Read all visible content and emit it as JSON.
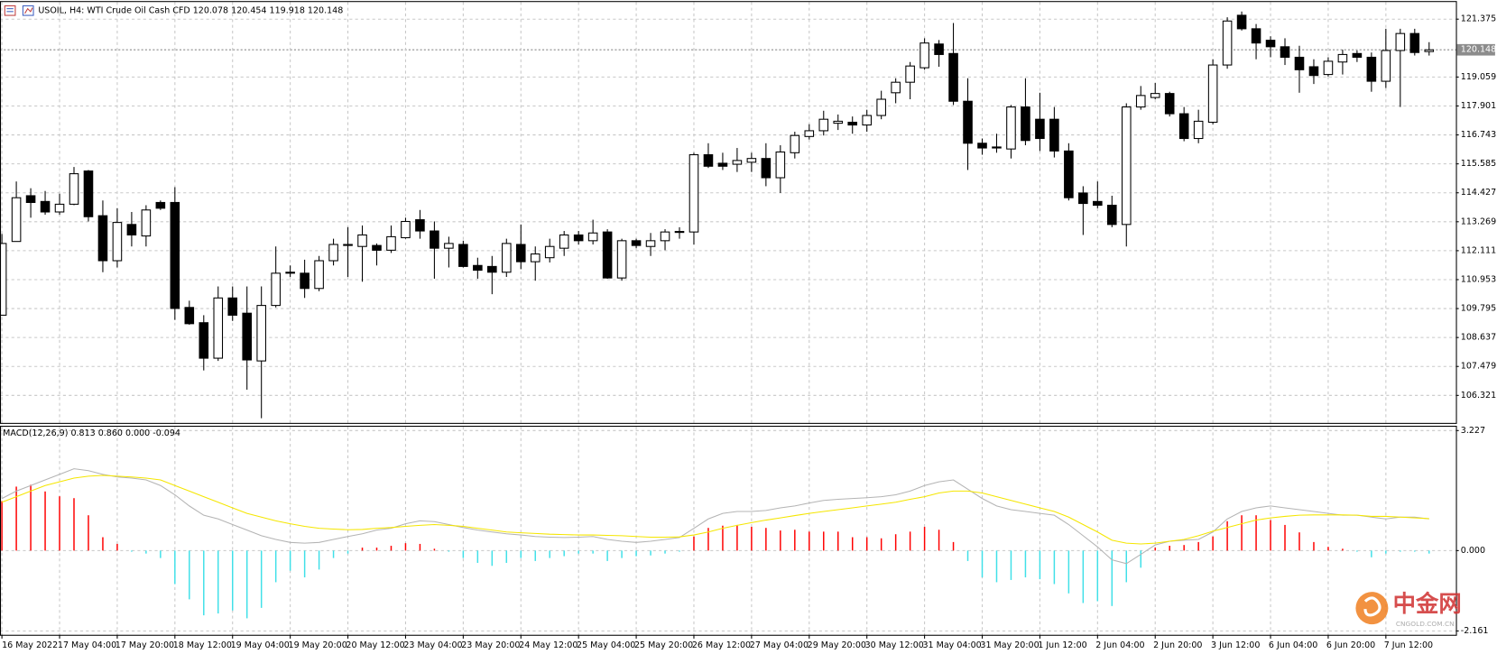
{
  "header": {
    "symbol": "USOIL, H4:",
    "description": "WTI Crude Oil Cash CFD"
  },
  "watermark": {
    "name": "中金网",
    "site": "CNGOLD.COM.CN"
  },
  "chart_data": [
    {
      "type": "candlestick",
      "categories": [
        "16 May 2022",
        null,
        null,
        null,
        "17 May 04:00",
        null,
        null,
        null,
        "17 May 20:00",
        null,
        null,
        null,
        "18 May 12:00",
        null,
        null,
        null,
        "19 May 04:00",
        null,
        null,
        null,
        "19 May 20:00",
        null,
        null,
        null,
        "20 May 12:00",
        null,
        null,
        null,
        "23 May 04:00",
        null,
        null,
        null,
        "23 May 20:00",
        null,
        null,
        null,
        "24 May 12:00",
        null,
        null,
        null,
        "25 May 04:00",
        null,
        null,
        null,
        "25 May 20:00",
        null,
        null,
        null,
        "26 May 12:00",
        null,
        null,
        null,
        "27 May 04:00",
        null,
        null,
        null,
        "29 May 20:00",
        null,
        null,
        null,
        "30 May 12:00",
        null,
        null,
        null,
        "31 May 04:00",
        null,
        null,
        null,
        "31 May 20:00",
        null,
        null,
        null,
        "1 Jun 12:00",
        null,
        null,
        null,
        "2 Jun 04:00",
        null,
        null,
        null,
        "2 Jun 20:00",
        null,
        null,
        null,
        "3 Jun 12:00",
        null,
        null,
        null,
        "6 Jun 04:00",
        null,
        null,
        null,
        "6 Jun 20:00",
        null,
        null,
        null,
        "7 Jun 12:00",
        null,
        null,
        null
      ],
      "open": [
        109.53,
        112.48,
        114.31,
        114.08,
        113.66,
        113.97,
        115.3,
        113.51,
        111.71,
        113.16,
        112.7,
        114.04,
        114.04,
        109.84,
        109.23,
        107.81,
        110.22,
        109.61,
        107.7,
        109.92,
        111.25,
        111.21,
        110.6,
        111.71,
        112.32,
        112.28,
        112.32,
        112.13,
        112.63,
        113.35,
        112.9,
        112.21,
        112.36,
        111.52,
        111.48,
        111.25,
        112.36,
        111.67,
        111.83,
        112.21,
        112.74,
        112.51,
        112.86,
        111.02,
        112.51,
        112.28,
        112.51,
        112.86,
        112.86,
        115.95,
        115.61,
        115.57,
        115.65,
        115.8,
        115.03,
        116.03,
        116.68,
        116.91,
        117.21,
        117.25,
        117.14,
        117.52,
        118.43,
        118.85,
        119.43,
        120.38,
        120.0,
        118.09,
        116.41,
        116.26,
        116.18,
        117.86,
        117.37,
        117.37,
        116.1,
        114.42,
        114.08,
        113.93,
        113.16,
        117.86,
        118.24,
        118.4,
        117.59,
        116.6,
        117.25,
        119.54,
        121.53,
        120.99,
        120.53,
        120.27,
        119.85,
        119.47,
        119.16,
        119.66,
        120.0,
        119.85,
        118.89,
        120.12,
        120.8,
        120.078
      ],
      "high": [
        112.78,
        114.88,
        114.61,
        114.5,
        114.39,
        115.46,
        115.34,
        114.12,
        113.81,
        113.66,
        113.93,
        114.12,
        114.65,
        110.11,
        109.53,
        110.68,
        110.68,
        110.68,
        110.68,
        112.28,
        111.52,
        111.75,
        111.9,
        112.59,
        113.05,
        113.12,
        112.4,
        113.12,
        113.43,
        113.74,
        113.28,
        112.67,
        112.51,
        111.83,
        111.9,
        112.59,
        113.16,
        112.28,
        112.59,
        112.9,
        112.9,
        113.35,
        112.97,
        112.59,
        112.59,
        112.82,
        112.97,
        113.05,
        116.03,
        116.41,
        116.03,
        116.22,
        116.03,
        116.41,
        116.33,
        116.87,
        117.17,
        117.71,
        117.56,
        117.48,
        117.75,
        118.51,
        119.01,
        119.66,
        120.61,
        120.54,
        121.22,
        119.01,
        116.6,
        116.79,
        117.94,
        119.01,
        118.43,
        117.86,
        116.41,
        114.69,
        114.88,
        114.31,
        118.01,
        118.7,
        118.82,
        118.47,
        117.86,
        117.75,
        119.77,
        121.45,
        121.68,
        121.18,
        120.69,
        120.61,
        120.31,
        119.77,
        119.85,
        120.15,
        120.12,
        120.04,
        120.99,
        120.99,
        120.99,
        120.454
      ],
      "low": [
        109.53,
        112.48,
        113.43,
        113.55,
        113.55,
        113.93,
        113.28,
        111.25,
        111.44,
        112.28,
        112.28,
        113.74,
        109.34,
        109.15,
        107.32,
        107.7,
        109.3,
        106.55,
        105.41,
        109.84,
        111.06,
        110.22,
        110.49,
        111.52,
        111.06,
        110.87,
        111.52,
        112.02,
        112.59,
        112.59,
        110.99,
        111.44,
        111.44,
        110.99,
        110.37,
        111.06,
        111.37,
        110.91,
        111.64,
        111.9,
        112.36,
        112.36,
        110.99,
        110.91,
        112.21,
        111.9,
        112.13,
        112.59,
        112.36,
        115.42,
        115.34,
        115.26,
        115.26,
        114.69,
        114.42,
        115.8,
        116.56,
        116.72,
        116.94,
        116.79,
        116.87,
        117.37,
        118.01,
        118.17,
        119.35,
        119.47,
        117.94,
        115.34,
        115.95,
        116.03,
        115.8,
        116.33,
        116.1,
        115.84,
        114.12,
        112.74,
        113.81,
        113.05,
        112.28,
        117.75,
        118.17,
        117.48,
        116.49,
        116.41,
        117.17,
        119.39,
        120.92,
        119.77,
        119.85,
        119.54,
        118.43,
        118.78,
        119.08,
        119.16,
        119.66,
        118.47,
        118.62,
        117.86,
        119.92,
        119.918
      ],
      "close": [
        112.4,
        114.23,
        114.04,
        113.66,
        113.97,
        115.19,
        113.47,
        111.71,
        113.24,
        112.74,
        113.74,
        113.81,
        109.8,
        109.19,
        107.81,
        110.22,
        109.53,
        107.74,
        109.92,
        111.21,
        111.21,
        110.6,
        111.71,
        112.36,
        112.36,
        112.74,
        112.13,
        112.67,
        113.28,
        112.9,
        112.21,
        112.4,
        111.48,
        111.33,
        111.25,
        112.4,
        111.67,
        111.98,
        112.28,
        112.74,
        112.51,
        112.82,
        111.02,
        112.51,
        112.32,
        112.51,
        112.86,
        112.88,
        115.95,
        115.49,
        115.49,
        115.72,
        115.8,
        115.03,
        116.06,
        116.72,
        116.91,
        117.37,
        117.29,
        117.14,
        117.52,
        118.17,
        118.85,
        119.5,
        120.42,
        119.96,
        118.09,
        116.41,
        116.22,
        116.22,
        117.86,
        116.52,
        116.6,
        116.1,
        114.23,
        114.0,
        113.93,
        113.16,
        117.86,
        118.32,
        118.4,
        117.59,
        116.6,
        117.29,
        119.54,
        121.3,
        120.99,
        120.42,
        120.27,
        119.85,
        119.35,
        119.12,
        119.69,
        119.96,
        119.85,
        118.89,
        120.12,
        120.8,
        120.04,
        120.148
      ],
      "up_color": "#ffffff",
      "down_color": "#000000",
      "wick_color": "#000000",
      "ylim": [
        105.22,
        122.06
      ],
      "yticks": [
        121.375,
        119.059,
        117.901,
        116.743,
        115.585,
        114.427,
        113.269,
        112.111,
        110.953,
        109.795,
        108.637,
        107.479,
        106.321
      ],
      "grid": true,
      "grid_color": "#c8c8c8",
      "last_price_line": true,
      "last_price_color": "#8c8c8c"
    },
    {
      "type": "macd",
      "title": "MACD(12,26,9) 0.813 0.860 0.000 -0.094",
      "series": [
        {
          "style": "histogram",
          "color": "#ff0000",
          "negative_color": "#40e0e8",
          "values": [
            1.33,
            1.72,
            1.77,
            1.59,
            1.46,
            1.41,
            0.95,
            0.36,
            0.18,
            -0.03,
            -0.08,
            -0.2,
            -0.9,
            -1.31,
            -1.74,
            -1.69,
            -1.61,
            -1.82,
            -1.54,
            -0.85,
            -0.54,
            -0.72,
            -0.51,
            -0.2,
            -0.08,
            0.08,
            0.08,
            0.13,
            0.2,
            0.18,
            0.05,
            -0.03,
            -0.2,
            -0.33,
            -0.41,
            -0.33,
            -0.2,
            -0.28,
            -0.2,
            -0.15,
            -0.08,
            -0.08,
            -0.28,
            -0.2,
            -0.15,
            -0.13,
            -0.08,
            -0.03,
            0.38,
            0.61,
            0.67,
            0.69,
            0.64,
            0.61,
            0.54,
            0.56,
            0.51,
            0.51,
            0.51,
            0.36,
            0.36,
            0.33,
            0.44,
            0.51,
            0.64,
            0.56,
            0.23,
            -0.28,
            -0.72,
            -0.85,
            -0.79,
            -0.72,
            -0.77,
            -0.9,
            -1.15,
            -1.41,
            -1.36,
            -1.49,
            -0.85,
            -0.46,
            0.08,
            0.13,
            0.15,
            0.23,
            0.38,
            0.79,
            0.95,
            0.95,
            0.82,
            0.69,
            0.49,
            0.23,
            0.1,
            0.05,
            -0.03,
            -0.18,
            -0.08,
            -0.03,
            -0.03,
            -0.08
          ]
        },
        {
          "style": "line",
          "color": "#b4b4b4",
          "values": [
            1.4,
            1.6,
            1.75,
            1.9,
            2.05,
            2.2,
            2.15,
            2.05,
            1.98,
            1.95,
            1.9,
            1.75,
            1.5,
            1.2,
            0.95,
            0.85,
            0.7,
            0.55,
            0.4,
            0.3,
            0.22,
            0.2,
            0.22,
            0.3,
            0.38,
            0.45,
            0.55,
            0.6,
            0.72,
            0.8,
            0.78,
            0.7,
            0.62,
            0.55,
            0.5,
            0.45,
            0.42,
            0.38,
            0.36,
            0.35,
            0.36,
            0.38,
            0.3,
            0.25,
            0.22,
            0.25,
            0.3,
            0.35,
            0.6,
            0.85,
            1.0,
            1.05,
            1.05,
            1.08,
            1.15,
            1.2,
            1.28,
            1.35,
            1.38,
            1.4,
            1.42,
            1.45,
            1.5,
            1.6,
            1.75,
            1.85,
            1.9,
            1.65,
            1.4,
            1.2,
            1.1,
            1.05,
            1.0,
            0.95,
            0.7,
            0.4,
            0.1,
            -0.25,
            -0.35,
            -0.1,
            0.15,
            0.25,
            0.28,
            0.3,
            0.5,
            0.85,
            1.05,
            1.15,
            1.2,
            1.15,
            1.1,
            1.05,
            1.0,
            0.95,
            0.95,
            0.9,
            0.85,
            0.9,
            0.9,
            0.85
          ]
        },
        {
          "style": "line",
          "color": "#f5e600",
          "values": [
            1.3,
            1.45,
            1.6,
            1.75,
            1.85,
            1.95,
            2.0,
            2.02,
            2.0,
            1.98,
            1.95,
            1.9,
            1.75,
            1.6,
            1.45,
            1.3,
            1.15,
            1.0,
            0.9,
            0.8,
            0.72,
            0.65,
            0.6,
            0.58,
            0.56,
            0.57,
            0.6,
            0.62,
            0.65,
            0.68,
            0.7,
            0.68,
            0.65,
            0.6,
            0.55,
            0.5,
            0.48,
            0.46,
            0.44,
            0.43,
            0.42,
            0.42,
            0.41,
            0.4,
            0.38,
            0.36,
            0.36,
            0.37,
            0.42,
            0.5,
            0.6,
            0.68,
            0.75,
            0.82,
            0.88,
            0.94,
            1.0,
            1.05,
            1.1,
            1.15,
            1.2,
            1.25,
            1.3,
            1.38,
            1.45,
            1.55,
            1.6,
            1.6,
            1.55,
            1.45,
            1.35,
            1.25,
            1.15,
            1.05,
            0.9,
            0.7,
            0.5,
            0.28,
            0.2,
            0.18,
            0.2,
            0.25,
            0.3,
            0.4,
            0.52,
            0.62,
            0.72,
            0.82,
            0.88,
            0.92,
            0.95,
            0.96,
            0.96,
            0.96,
            0.95,
            0.92,
            0.92,
            0.9,
            0.88,
            0.86
          ]
        }
      ],
      "ylim": [
        -2.161,
        3.227
      ],
      "yticks": [
        3.227,
        {
          "value": 0,
          "label": "0.000"
        },
        -2.161
      ],
      "grid": true
    }
  ]
}
